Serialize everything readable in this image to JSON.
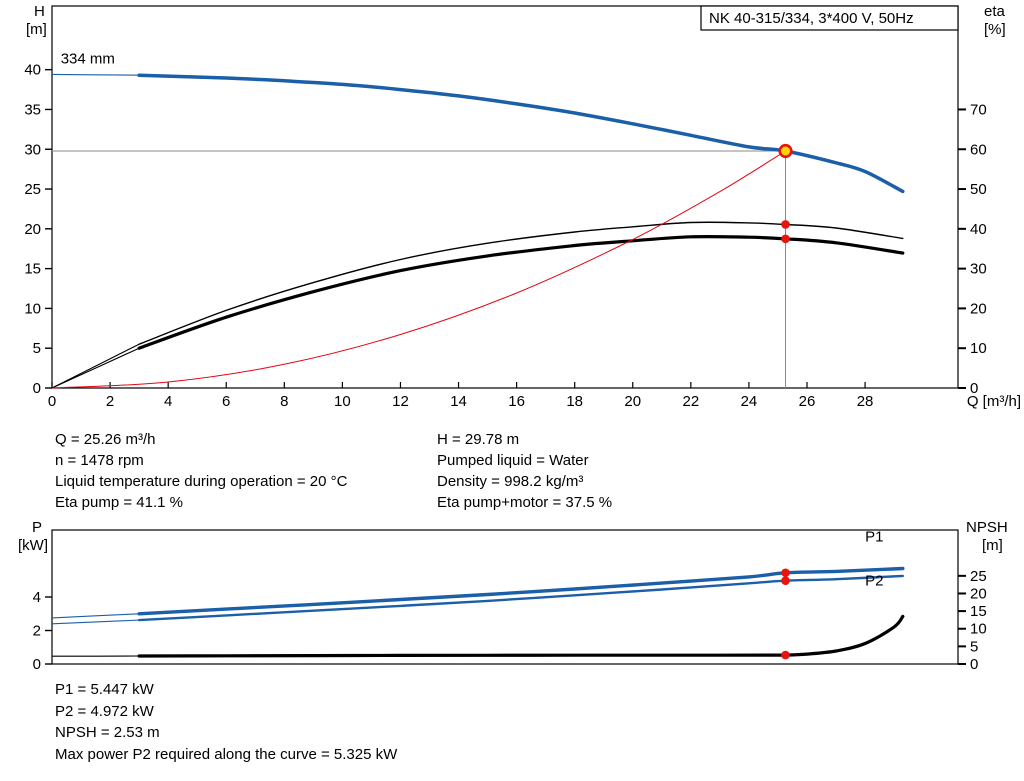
{
  "colors": {
    "curve_blue": "#1b5fa8",
    "curve_black": "#000000",
    "curve_red": "#e30613",
    "marker_red": "#e8150d",
    "marker_yellow": "#ffd400",
    "crosshair_gray": "#8a8a8a",
    "axis_black": "#000000"
  },
  "chart_data": [
    {
      "type": "line",
      "title": "NK 40-315/334, 3*400 V, 50Hz",
      "x_axis": {
        "label": "Q [m³/h]",
        "range": [
          0,
          31.2
        ],
        "ticks": [
          0,
          2,
          4,
          6,
          8,
          10,
          12,
          14,
          16,
          18,
          20,
          22,
          24,
          26,
          28
        ]
      },
      "y_left": {
        "label": [
          "H",
          "[m]"
        ],
        "range": [
          0,
          48
        ],
        "ticks": [
          0,
          5,
          10,
          15,
          20,
          25,
          30,
          35,
          40
        ]
      },
      "y_right": {
        "label": [
          "eta",
          "[%]"
        ],
        "range": [
          0,
          96
        ],
        "ticks": [
          0,
          10,
          20,
          30,
          40,
          50,
          60,
          70
        ]
      },
      "grid": false,
      "series": [
        {
          "name": "head-curve",
          "label": "334 mm",
          "axis": "left",
          "color": "#1b5fa8",
          "width": 3.5,
          "thin_until": 3,
          "x": [
            0,
            3,
            6,
            8,
            10,
            12,
            14,
            16,
            18,
            20,
            22,
            24,
            25.26,
            27,
            28,
            29.3
          ],
          "y": [
            39.4,
            39.3,
            38.95,
            38.6,
            38.15,
            37.5,
            36.7,
            35.7,
            34.55,
            33.2,
            31.75,
            30.3,
            29.78,
            28.3,
            27.2,
            24.7
          ]
        },
        {
          "name": "eta-pump-curve",
          "axis": "right",
          "color": "#000000",
          "width": 1.4,
          "thin_until": 3,
          "x": [
            0,
            3,
            6,
            9,
            12,
            15,
            18,
            20,
            22,
            24,
            25.26,
            27,
            29.3
          ],
          "y": [
            0,
            11,
            19.5,
            26.5,
            32.3,
            36.4,
            39.2,
            40.5,
            41.6,
            41.5,
            41.1,
            40.2,
            37.6
          ]
        },
        {
          "name": "eta-pump-motor-curve",
          "axis": "right",
          "color": "#000000",
          "width": 3.2,
          "thin_until": 3,
          "x": [
            0,
            3,
            6,
            9,
            12,
            15,
            18,
            20,
            22,
            24,
            25.26,
            27,
            29.3
          ],
          "y": [
            0,
            10,
            17.8,
            24.2,
            29.5,
            33.2,
            35.8,
            37.0,
            38.0,
            37.9,
            37.5,
            36.5,
            33.9
          ]
        },
        {
          "name": "system-curve",
          "axis": "left",
          "color": "#e30613",
          "width": 1,
          "x": [
            0,
            4,
            8,
            12,
            16,
            20,
            23,
            25.26
          ],
          "y": [
            0,
            0.75,
            2.98,
            6.72,
            11.94,
            18.66,
            24.68,
            29.78
          ]
        }
      ],
      "operating_point": {
        "q": 25.26,
        "h": 29.78
      },
      "marker_points": [
        {
          "q": 25.26,
          "value": 41.1,
          "axis": "right"
        },
        {
          "q": 25.26,
          "value": 37.5,
          "axis": "right"
        }
      ],
      "annotation": {
        "text": "334 mm",
        "q": 0.3,
        "h": 40.8
      }
    },
    {
      "type": "line",
      "x_axis": {
        "range": [
          0,
          31.2
        ],
        "ticks": []
      },
      "y_left": {
        "label": [
          "P",
          "[kW]"
        ],
        "range": [
          0,
          8
        ],
        "ticks": [
          0,
          2,
          4
        ]
      },
      "y_right": {
        "label": [
          "NPSH",
          "[m]"
        ],
        "range": [
          0,
          38
        ],
        "ticks": [
          0,
          5,
          10,
          15,
          20,
          25
        ]
      },
      "grid": false,
      "series": [
        {
          "name": "p1-curve",
          "label": "P1",
          "axis": "left",
          "color": "#1b5fa8",
          "width": 3.4,
          "thin_until": 3,
          "x": [
            0,
            3,
            6,
            9,
            12,
            15,
            18,
            21,
            24,
            25.26,
            27,
            29.3
          ],
          "y": [
            2.75,
            3.0,
            3.28,
            3.56,
            3.85,
            4.15,
            4.48,
            4.83,
            5.2,
            5.447,
            5.53,
            5.7
          ]
        },
        {
          "name": "p2-curve",
          "label": "P2",
          "axis": "left",
          "color": "#1b5fa8",
          "width": 2.4,
          "thin_until": 3,
          "x": [
            0,
            3,
            6,
            9,
            12,
            15,
            18,
            21,
            24,
            25.26,
            27,
            29.3
          ],
          "y": [
            2.4,
            2.62,
            2.9,
            3.18,
            3.47,
            3.77,
            4.1,
            4.45,
            4.82,
            4.972,
            5.06,
            5.26
          ]
        },
        {
          "name": "npsh-curve",
          "axis": "right",
          "color": "#000000",
          "width": 3.2,
          "thin_until": 3,
          "x": [
            0,
            3,
            6,
            9,
            12,
            15,
            18,
            21,
            23,
            24.5,
            25.26,
            26,
            27,
            28,
            29,
            29.3
          ],
          "y": [
            2.2,
            2.26,
            2.32,
            2.38,
            2.44,
            2.48,
            2.5,
            2.5,
            2.5,
            2.51,
            2.53,
            2.8,
            3.7,
            5.8,
            10.5,
            13.5
          ]
        }
      ],
      "marker_points": [
        {
          "q": 25.26,
          "value": 5.447,
          "axis": "left"
        },
        {
          "q": 25.26,
          "value": 4.972,
          "axis": "left"
        },
        {
          "q": 25.26,
          "value": 2.53,
          "axis": "right"
        }
      ],
      "series_labels": [
        {
          "text": "P1",
          "q": 28.0,
          "value": 7.3,
          "axis": "left"
        },
        {
          "text": "P2",
          "q": 28.0,
          "value": 4.7,
          "axis": "left"
        }
      ]
    }
  ],
  "info_top": {
    "left": [
      "Q = 25.26 m³/h",
      "n = 1478 rpm",
      "Liquid temperature during operation = 20 °C",
      "Eta pump = 41.1 %"
    ],
    "right": [
      "H = 29.78 m",
      "Pumped liquid = Water",
      "Density = 998.2 kg/m³",
      "Eta pump+motor = 37.5 %"
    ]
  },
  "info_bottom": [
    "P1 = 5.447 kW",
    "P2 = 4.972 kW",
    "NPSH = 2.53 m",
    "Max power P2 required along the curve = 5.325 kW"
  ]
}
